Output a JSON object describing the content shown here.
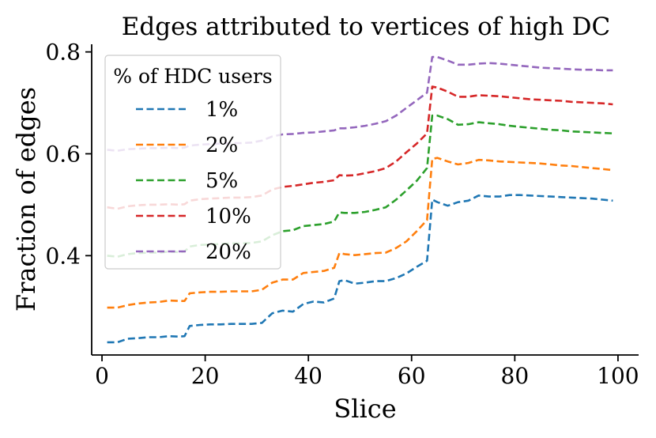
{
  "chart_data": {
    "type": "line",
    "title": "Edges attributed to vertices of high DC",
    "xlabel": "Slice",
    "ylabel": "Fraction of edges",
    "xlim": [
      -2,
      104
    ],
    "ylim": [
      0.205,
      0.815
    ],
    "xticks": [
      0,
      20,
      40,
      60,
      80,
      100
    ],
    "yticks": [
      0.4,
      0.6,
      0.8
    ],
    "xtick_labels": [
      "0",
      "20",
      "40",
      "60",
      "80",
      "100"
    ],
    "ytick_labels": [
      "0.4",
      "0.6",
      "0.8"
    ],
    "legend_title": "% of HDC users",
    "legend_position": "upper-left",
    "grid": false,
    "line_style": "dashed",
    "series": [
      {
        "name": "1%",
        "color": "#1f77b4",
        "x": [
          1,
          3,
          5,
          7,
          9,
          11,
          13,
          15,
          16,
          17,
          19,
          21,
          23,
          25,
          27,
          29,
          31,
          33,
          35,
          37,
          39,
          41,
          43,
          45,
          46,
          47,
          49,
          51,
          53,
          55,
          57,
          59,
          61,
          63,
          64,
          65,
          67,
          69,
          71,
          73,
          75,
          77,
          79,
          81,
          83,
          85,
          87,
          89,
          91,
          93,
          95,
          97,
          99
        ],
        "y": [
          0.23,
          0.23,
          0.237,
          0.238,
          0.24,
          0.24,
          0.242,
          0.241,
          0.242,
          0.262,
          0.264,
          0.265,
          0.265,
          0.266,
          0.266,
          0.266,
          0.268,
          0.287,
          0.292,
          0.29,
          0.305,
          0.31,
          0.308,
          0.316,
          0.35,
          0.352,
          0.345,
          0.347,
          0.35,
          0.35,
          0.356,
          0.365,
          0.378,
          0.39,
          0.51,
          0.505,
          0.498,
          0.505,
          0.508,
          0.518,
          0.516,
          0.516,
          0.519,
          0.519,
          0.518,
          0.517,
          0.516,
          0.515,
          0.514,
          0.513,
          0.512,
          0.51,
          0.508
        ]
      },
      {
        "name": "2%",
        "color": "#ff7f0e",
        "x": [
          1,
          3,
          5,
          7,
          9,
          11,
          13,
          15,
          16,
          17,
          19,
          21,
          23,
          25,
          27,
          29,
          31,
          33,
          35,
          37,
          39,
          41,
          43,
          45,
          46,
          47,
          49,
          51,
          53,
          55,
          57,
          59,
          61,
          63,
          64,
          65,
          67,
          69,
          71,
          73,
          75,
          77,
          79,
          81,
          83,
          85,
          87,
          89,
          91,
          93,
          95,
          97,
          99
        ],
        "y": [
          0.298,
          0.298,
          0.303,
          0.306,
          0.308,
          0.309,
          0.312,
          0.311,
          0.311,
          0.326,
          0.328,
          0.329,
          0.329,
          0.33,
          0.33,
          0.33,
          0.333,
          0.347,
          0.353,
          0.353,
          0.366,
          0.368,
          0.37,
          0.376,
          0.405,
          0.403,
          0.401,
          0.403,
          0.405,
          0.406,
          0.415,
          0.428,
          0.448,
          0.47,
          0.59,
          0.592,
          0.585,
          0.579,
          0.582,
          0.588,
          0.587,
          0.585,
          0.584,
          0.583,
          0.582,
          0.581,
          0.579,
          0.577,
          0.576,
          0.574,
          0.572,
          0.57,
          0.568
        ]
      },
      {
        "name": "5%",
        "color": "#2ca02c",
        "x": [
          1,
          3,
          5,
          7,
          9,
          11,
          13,
          15,
          16,
          17,
          19,
          21,
          23,
          25,
          27,
          29,
          31,
          33,
          35,
          37,
          39,
          41,
          43,
          45,
          46,
          47,
          49,
          51,
          53,
          55,
          57,
          59,
          61,
          63,
          64,
          65,
          67,
          69,
          71,
          73,
          75,
          77,
          79,
          81,
          83,
          85,
          87,
          89,
          91,
          93,
          95,
          97,
          99
        ],
        "y": [
          0.4,
          0.398,
          0.403,
          0.405,
          0.406,
          0.406,
          0.408,
          0.407,
          0.408,
          0.418,
          0.421,
          0.422,
          0.423,
          0.424,
          0.424,
          0.425,
          0.428,
          0.44,
          0.448,
          0.45,
          0.458,
          0.46,
          0.462,
          0.467,
          0.485,
          0.484,
          0.484,
          0.486,
          0.49,
          0.495,
          0.51,
          0.528,
          0.547,
          0.572,
          0.675,
          0.675,
          0.668,
          0.657,
          0.658,
          0.662,
          0.66,
          0.658,
          0.655,
          0.653,
          0.651,
          0.649,
          0.647,
          0.646,
          0.644,
          0.643,
          0.642,
          0.641,
          0.64
        ]
      },
      {
        "name": "10%",
        "color": "#d62728",
        "x": [
          1,
          3,
          5,
          7,
          9,
          11,
          13,
          15,
          16,
          17,
          19,
          21,
          23,
          25,
          27,
          29,
          31,
          33,
          35,
          37,
          39,
          41,
          43,
          45,
          46,
          47,
          49,
          51,
          53,
          55,
          57,
          59,
          61,
          63,
          64,
          65,
          67,
          69,
          71,
          73,
          75,
          77,
          79,
          81,
          83,
          85,
          87,
          89,
          91,
          93,
          95,
          97,
          99
        ],
        "y": [
          0.495,
          0.492,
          0.497,
          0.499,
          0.5,
          0.5,
          0.501,
          0.5,
          0.501,
          0.508,
          0.511,
          0.512,
          0.513,
          0.514,
          0.514,
          0.515,
          0.518,
          0.53,
          0.535,
          0.537,
          0.54,
          0.543,
          0.545,
          0.548,
          0.558,
          0.557,
          0.558,
          0.562,
          0.566,
          0.572,
          0.585,
          0.603,
          0.62,
          0.64,
          0.732,
          0.73,
          0.722,
          0.712,
          0.712,
          0.715,
          0.714,
          0.713,
          0.711,
          0.709,
          0.707,
          0.706,
          0.705,
          0.704,
          0.702,
          0.701,
          0.7,
          0.699,
          0.697
        ]
      },
      {
        "name": "20%",
        "color": "#9467bd",
        "x": [
          1,
          3,
          5,
          7,
          9,
          11,
          13,
          15,
          16,
          17,
          19,
          21,
          23,
          25,
          27,
          29,
          31,
          33,
          35,
          37,
          39,
          41,
          43,
          45,
          46,
          47,
          49,
          51,
          53,
          55,
          57,
          59,
          61,
          63,
          64,
          65,
          67,
          69,
          71,
          73,
          75,
          77,
          79,
          81,
          83,
          85,
          87,
          89,
          91,
          93,
          95,
          97,
          99
        ],
        "y": [
          0.608,
          0.606,
          0.609,
          0.61,
          0.611,
          0.611,
          0.612,
          0.611,
          0.612,
          0.616,
          0.618,
          0.619,
          0.62,
          0.621,
          0.621,
          0.622,
          0.626,
          0.634,
          0.638,
          0.639,
          0.641,
          0.642,
          0.644,
          0.646,
          0.65,
          0.65,
          0.652,
          0.655,
          0.659,
          0.664,
          0.675,
          0.69,
          0.705,
          0.72,
          0.79,
          0.79,
          0.783,
          0.775,
          0.775,
          0.777,
          0.778,
          0.777,
          0.775,
          0.773,
          0.771,
          0.769,
          0.768,
          0.767,
          0.766,
          0.765,
          0.765,
          0.764,
          0.764
        ]
      }
    ]
  }
}
